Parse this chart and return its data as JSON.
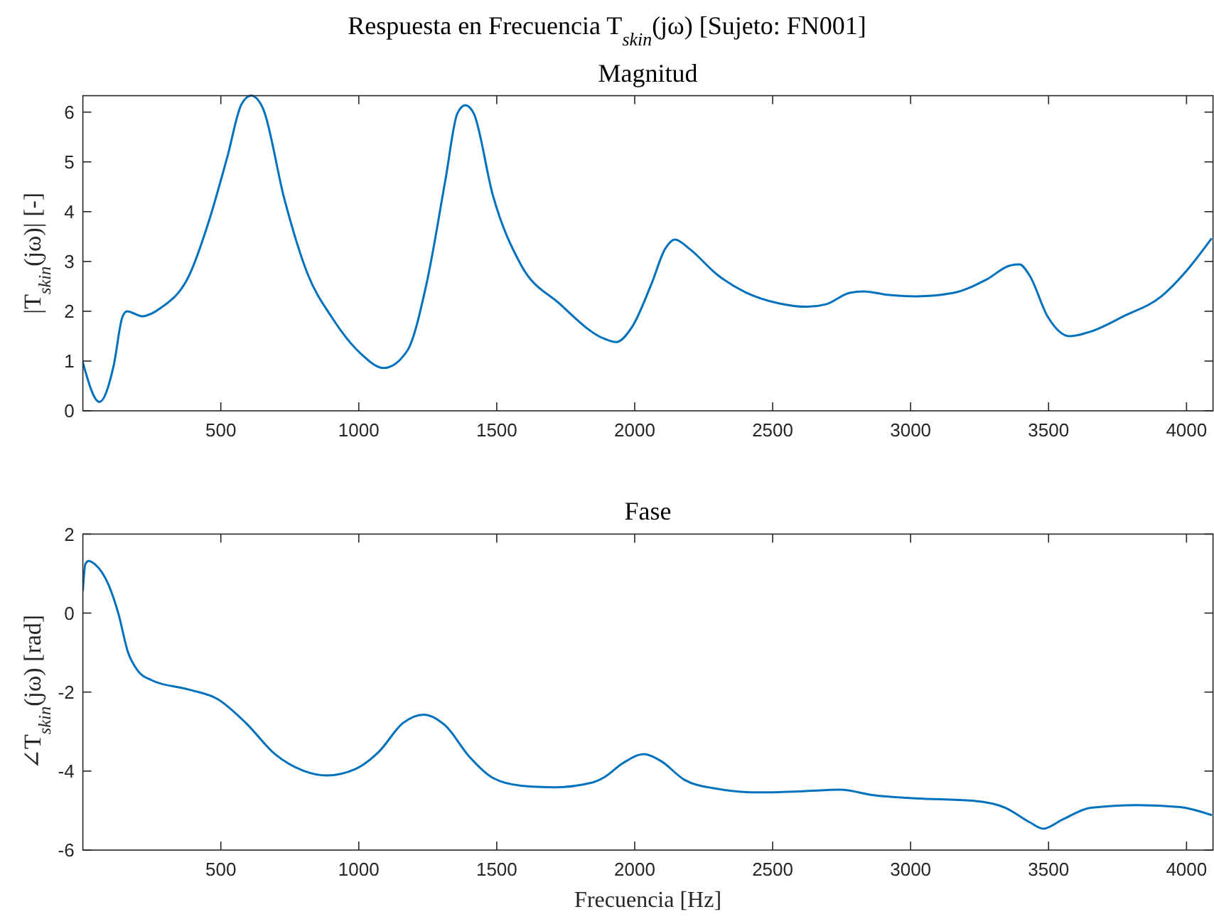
{
  "chart_data": [
    {
      "type": "line",
      "title": "Respuesta en Frecuencia T$_{skin}$(jω) [Sujeto: FN001]",
      "subtitle": "Magnitud",
      "ylabel": "|T$_{skin}$(jω)| [-]",
      "xlim": [
        0,
        4096
      ],
      "xticks": [
        500,
        1000,
        1500,
        2000,
        2500,
        3000,
        3500,
        4000
      ],
      "ylim": [
        0,
        6.33
      ],
      "yticks": [
        0,
        1,
        2,
        3,
        4,
        5,
        6
      ],
      "series": [
        {
          "color": "#0072bd",
          "x": [
            0,
            60,
            112,
            143,
            160,
            215,
            283,
            386,
            455,
            524,
            575,
            610,
            653,
            730,
            816,
            902,
            1005,
            1091,
            1176,
            1245,
            1314,
            1357,
            1386,
            1417,
            1485,
            1589,
            1726,
            1889,
            1932,
            1991,
            2060,
            2111,
            2146,
            2197,
            2300,
            2402,
            2522,
            2625,
            2693,
            2779,
            2830,
            2916,
            3019,
            3156,
            3276,
            3361,
            3395,
            3430,
            3498,
            3575,
            3652,
            3772,
            3909,
            3995,
            4089
          ],
          "values": [
            0.97,
            0.18,
            0.92,
            1.88,
            2.0,
            1.9,
            2.07,
            2.73,
            3.78,
            5.11,
            6.16,
            6.33,
            6.07,
            4.26,
            2.73,
            1.88,
            1.16,
            0.86,
            1.21,
            2.54,
            4.64,
            5.97,
            6.14,
            5.97,
            4.35,
            2.92,
            2.16,
            1.45,
            1.38,
            1.69,
            2.54,
            3.26,
            3.44,
            3.26,
            2.73,
            2.38,
            2.16,
            2.09,
            2.14,
            2.37,
            2.4,
            2.33,
            2.3,
            2.37,
            2.64,
            2.92,
            2.94,
            2.73,
            1.88,
            1.5,
            1.59,
            1.9,
            2.3,
            2.78,
            3.45
          ]
        }
      ]
    },
    {
      "type": "line",
      "title": "Fase",
      "xlabel": "Frecuencia [Hz]",
      "ylabel": "∠T$_{skin}$(jω) [rad]",
      "xlim": [
        0,
        4096
      ],
      "xticks": [
        500,
        1000,
        1500,
        2000,
        2500,
        3000,
        3500,
        4000
      ],
      "ylim": [
        -6,
        2
      ],
      "yticks": [
        -6,
        -4,
        -2,
        0,
        2
      ],
      "series": [
        {
          "color": "#0072bd",
          "x": [
            0,
            9,
            21,
            43,
            94,
            129,
            163,
            197,
            249,
            386,
            489,
            592,
            696,
            799,
            884,
            987,
            1073,
            1159,
            1236,
            1314,
            1400,
            1485,
            1589,
            1709,
            1846,
            1889,
            1957,
            2034,
            2094,
            2180,
            2283,
            2454,
            2608,
            2745,
            2865,
            3019,
            3224,
            3344,
            3430,
            3481,
            3550,
            3652,
            3823,
            3977,
            4089
          ],
          "values": [
            0.58,
            1.24,
            1.32,
            1.24,
            0.7,
            -0.02,
            -0.98,
            -1.44,
            -1.7,
            -1.94,
            -2.18,
            -2.79,
            -3.57,
            -3.99,
            -4.11,
            -3.95,
            -3.51,
            -2.79,
            -2.57,
            -2.85,
            -3.63,
            -4.17,
            -4.37,
            -4.41,
            -4.29,
            -4.16,
            -3.8,
            -3.57,
            -3.74,
            -4.22,
            -4.43,
            -4.54,
            -4.51,
            -4.47,
            -4.61,
            -4.69,
            -4.75,
            -4.93,
            -5.29,
            -5.46,
            -5.23,
            -4.93,
            -4.86,
            -4.91,
            -5.11
          ]
        }
      ]
    }
  ]
}
